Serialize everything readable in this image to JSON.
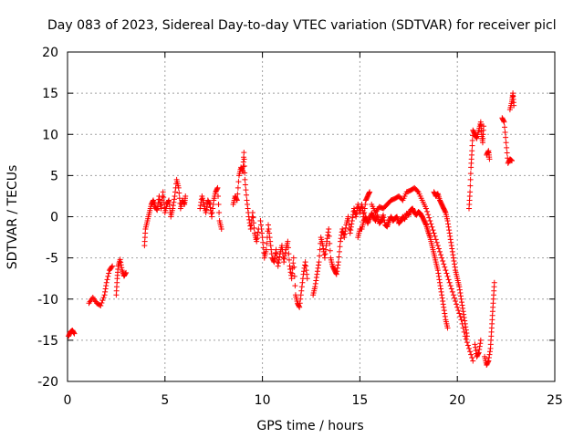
{
  "chart_data": {
    "type": "scatter",
    "title": "Day 083 of 2023, Sidereal Day-to-day VTEC variation (SDTVAR) for receiver picl",
    "xlabel": "GPS time / hours",
    "ylabel": "SDTVAR / TECUs",
    "xlim": [
      0,
      25
    ],
    "ylim": [
      -20,
      20
    ],
    "x_ticks": [
      0,
      5,
      10,
      15,
      20,
      25
    ],
    "y_ticks": [
      -20,
      -15,
      -10,
      -5,
      0,
      5,
      10,
      15,
      20
    ],
    "x_tick_labels": [
      "0",
      "5",
      "10",
      "15",
      "20",
      "25"
    ],
    "y_tick_labels": [
      "-20",
      "-15",
      "-10",
      "-5",
      "0",
      "5",
      "10",
      "15",
      "20"
    ],
    "grid": true,
    "marker": "+",
    "marker_color": "#ff0000",
    "series": [
      {
        "name": "SDTVAR",
        "segments": [
          [
            [
              0.05,
              -14.5
            ],
            [
              0.15,
              -14.0
            ],
            [
              0.25,
              -13.8
            ],
            [
              0.35,
              -14.2
            ]
          ],
          [
            [
              1.1,
              -10.5
            ],
            [
              1.3,
              -9.8
            ],
            [
              1.5,
              -10.5
            ],
            [
              1.7,
              -10.8
            ],
            [
              1.9,
              -9.5
            ],
            [
              2.0,
              -8.0
            ],
            [
              2.15,
              -6.5
            ],
            [
              2.3,
              -6.0
            ]
          ],
          [
            [
              2.5,
              -9.5
            ],
            [
              2.55,
              -7.5
            ],
            [
              2.6,
              -6.0
            ],
            [
              2.7,
              -5.2
            ],
            [
              2.8,
              -6.5
            ],
            [
              2.9,
              -7.2
            ],
            [
              3.0,
              -6.8
            ]
          ],
          [
            [
              3.95,
              -3.5
            ],
            [
              4.0,
              -1.5
            ],
            [
              4.1,
              -0.5
            ],
            [
              4.2,
              0.5
            ],
            [
              4.3,
              1.5
            ],
            [
              4.4,
              2.0
            ],
            [
              4.5,
              1.2
            ],
            [
              4.6,
              0.8
            ],
            [
              4.7,
              2.5
            ],
            [
              4.8,
              1.0
            ],
            [
              4.9,
              3.0
            ],
            [
              5.0,
              0.5
            ],
            [
              5.1,
              1.5
            ],
            [
              5.2,
              2.0
            ],
            [
              5.3,
              0.0
            ],
            [
              5.4,
              1.0
            ],
            [
              5.5,
              2.5
            ],
            [
              5.6,
              4.5
            ],
            [
              5.7,
              3.5
            ],
            [
              5.8,
              1.0
            ],
            [
              5.9,
              2.0
            ],
            [
              6.0,
              1.5
            ],
            [
              6.05,
              2.5
            ]
          ],
          [
            [
              6.8,
              1.0
            ],
            [
              6.9,
              2.5
            ],
            [
              7.0,
              1.5
            ],
            [
              7.1,
              0.5
            ],
            [
              7.2,
              2.0
            ],
            [
              7.3,
              1.5
            ],
            [
              7.4,
              0.0
            ],
            [
              7.5,
              2.0
            ],
            [
              7.6,
              3.0
            ],
            [
              7.7,
              3.5
            ],
            [
              7.8,
              -0.5
            ],
            [
              7.9,
              -1.5
            ]
          ],
          [
            [
              8.5,
              1.5
            ],
            [
              8.6,
              2.5
            ],
            [
              8.7,
              2.0
            ],
            [
              8.8,
              5.0
            ],
            [
              8.9,
              6.0
            ],
            [
              9.0,
              5.5
            ],
            [
              9.05,
              7.8
            ],
            [
              9.1,
              4.5
            ],
            [
              9.2,
              2.0
            ],
            [
              9.3,
              0.0
            ],
            [
              9.4,
              -1.5
            ],
            [
              9.5,
              0.5
            ],
            [
              9.6,
              -2.0
            ],
            [
              9.7,
              -3.0
            ],
            [
              9.8,
              -1.5
            ]
          ],
          [
            [
              9.9,
              -0.5
            ],
            [
              10.0,
              -2.5
            ],
            [
              10.1,
              -5.0
            ],
            [
              10.2,
              -4.0
            ],
            [
              10.3,
              -1.0
            ],
            [
              10.4,
              -3.0
            ],
            [
              10.5,
              -5.0
            ],
            [
              10.6,
              -5.5
            ],
            [
              10.7,
              -4.0
            ],
            [
              10.8,
              -6.0
            ],
            [
              10.9,
              -4.5
            ],
            [
              11.0,
              -3.5
            ],
            [
              11.1,
              -5.5
            ],
            [
              11.2,
              -4.0
            ],
            [
              11.3,
              -3.0
            ],
            [
              11.4,
              -6.0
            ],
            [
              11.5,
              -7.5
            ],
            [
              11.6,
              -5.0
            ],
            [
              11.7,
              -9.5
            ],
            [
              11.8,
              -10.5
            ],
            [
              11.9,
              -11.0
            ],
            [
              12.0,
              -9.0
            ],
            [
              12.1,
              -7.0
            ],
            [
              12.2,
              -5.5
            ],
            [
              12.3,
              -7.5
            ]
          ],
          [
            [
              12.6,
              -9.5
            ],
            [
              12.7,
              -8.5
            ],
            [
              12.8,
              -7.0
            ],
            [
              12.9,
              -5.5
            ],
            [
              13.0,
              -2.5
            ],
            [
              13.1,
              -3.5
            ],
            [
              13.2,
              -5.0
            ],
            [
              13.3,
              -3.0
            ],
            [
              13.4,
              -1.5
            ],
            [
              13.5,
              -5.0
            ],
            [
              13.6,
              -6.0
            ],
            [
              13.7,
              -6.5
            ],
            [
              13.8,
              -7.0
            ],
            [
              13.9,
              -5.5
            ],
            [
              14.0,
              -3.0
            ],
            [
              14.1,
              -1.5
            ],
            [
              14.2,
              -2.5
            ],
            [
              14.3,
              -1.0
            ],
            [
              14.4,
              0.0
            ],
            [
              14.5,
              -2.0
            ],
            [
              14.6,
              -0.5
            ],
            [
              14.7,
              1.0
            ],
            [
              14.8,
              0.0
            ],
            [
              14.9,
              1.5
            ],
            [
              15.0,
              0.5
            ],
            [
              15.1,
              1.5
            ],
            [
              15.2,
              0.0
            ],
            [
              15.3,
              2.0
            ],
            [
              15.4,
              2.5
            ],
            [
              15.5,
              3.0
            ]
          ],
          [
            [
              14.9,
              -2.5
            ],
            [
              15.0,
              -1.5
            ],
            [
              15.1,
              -1.5
            ],
            [
              15.2,
              -0.5
            ],
            [
              15.3,
              0.0
            ],
            [
              15.4,
              -0.8
            ],
            [
              15.5,
              -0.2
            ],
            [
              15.6,
              0.4
            ],
            [
              15.7,
              0.0
            ],
            [
              15.8,
              -0.5
            ],
            [
              15.9,
              0.2
            ],
            [
              16.0,
              -0.8
            ],
            [
              16.1,
              -0.5
            ],
            [
              16.2,
              0.2
            ],
            [
              16.3,
              -1.0
            ],
            [
              16.4,
              -1.2
            ],
            [
              16.5,
              -0.5
            ],
            [
              16.6,
              0.0
            ],
            [
              16.7,
              -0.5
            ],
            [
              16.8,
              -0.2
            ],
            [
              16.9,
              0.0
            ],
            [
              17.0,
              -0.8
            ],
            [
              17.1,
              -0.5
            ],
            [
              17.2,
              0.0
            ],
            [
              17.3,
              -0.3
            ],
            [
              17.4,
              0.4
            ],
            [
              17.5,
              0.2
            ],
            [
              17.6,
              0.8
            ],
            [
              17.7,
              1.0
            ],
            [
              17.8,
              0.5
            ],
            [
              17.9,
              0.2
            ],
            [
              18.0,
              0.6
            ],
            [
              18.1,
              0.4
            ],
            [
              18.2,
              0.0
            ],
            [
              18.3,
              -0.5
            ],
            [
              18.4,
              -1.0
            ],
            [
              18.5,
              -1.8
            ],
            [
              18.6,
              -2.5
            ],
            [
              18.7,
              -3.5
            ],
            [
              18.8,
              -4.5
            ],
            [
              18.9,
              -5.5
            ],
            [
              19.0,
              -6.5
            ],
            [
              19.1,
              -8.0
            ],
            [
              19.2,
              -9.5
            ],
            [
              19.3,
              -11.0
            ],
            [
              19.4,
              -12.5
            ],
            [
              19.5,
              -13.5
            ]
          ],
          [
            [
              15.6,
              1.5
            ],
            [
              15.8,
              0.5
            ],
            [
              16.0,
              1.2
            ],
            [
              16.2,
              1.0
            ],
            [
              16.4,
              1.5
            ],
            [
              16.6,
              2.0
            ],
            [
              16.8,
              2.2
            ],
            [
              17.0,
              2.5
            ],
            [
              17.2,
              2.0
            ],
            [
              17.4,
              3.0
            ],
            [
              17.6,
              3.2
            ],
            [
              17.8,
              3.5
            ],
            [
              18.0,
              3.0
            ],
            [
              18.2,
              2.0
            ],
            [
              18.4,
              1.0
            ],
            [
              18.6,
              -0.5
            ],
            [
              18.8,
              -2.0
            ],
            [
              19.0,
              -3.5
            ],
            [
              19.2,
              -5.0
            ],
            [
              19.4,
              -6.5
            ],
            [
              19.6,
              -8.0
            ],
            [
              19.8,
              -9.5
            ],
            [
              20.0,
              -11.0
            ],
            [
              20.2,
              -12.5
            ],
            [
              20.4,
              -14.5
            ],
            [
              20.6,
              -16.0
            ],
            [
              20.8,
              -17.5
            ]
          ],
          [
            [
              18.8,
              3.0
            ],
            [
              18.9,
              2.5
            ],
            [
              19.0,
              2.8
            ],
            [
              19.1,
              2.0
            ],
            [
              19.2,
              1.5
            ],
            [
              19.3,
              1.0
            ],
            [
              19.4,
              0.5
            ],
            [
              19.5,
              -0.5
            ],
            [
              19.6,
              -2.0
            ],
            [
              19.7,
              -3.5
            ],
            [
              19.8,
              -5.0
            ],
            [
              19.9,
              -6.5
            ],
            [
              20.0,
              -7.5
            ],
            [
              20.1,
              -8.5
            ],
            [
              20.2,
              -10.0
            ],
            [
              20.3,
              -11.5
            ],
            [
              20.4,
              -13.0
            ],
            [
              20.5,
              -14.5
            ]
          ],
          [
            [
              20.6,
              1.0
            ],
            [
              20.65,
              3.0
            ],
            [
              20.7,
              6.0
            ],
            [
              20.75,
              8.0
            ],
            [
              20.8,
              10.5
            ],
            [
              20.9,
              10.0
            ],
            [
              21.0,
              9.5
            ],
            [
              21.1,
              10.5
            ],
            [
              21.2,
              11.5
            ],
            [
              21.25,
              10.0
            ],
            [
              21.3,
              9.0
            ],
            [
              21.35,
              11.0
            ]
          ],
          [
            [
              20.9,
              -15.5
            ],
            [
              21.0,
              -17.0
            ],
            [
              21.1,
              -16.5
            ],
            [
              21.2,
              -15.0
            ]
          ],
          [
            [
              21.5,
              7.5
            ],
            [
              21.6,
              8.0
            ],
            [
              21.65,
              7.0
            ]
          ],
          [
            [
              21.4,
              -17.0
            ],
            [
              21.5,
              -18.0
            ],
            [
              21.6,
              -17.5
            ],
            [
              21.7,
              -16.0
            ],
            [
              21.75,
              -14.0
            ],
            [
              21.8,
              -12.0
            ],
            [
              21.85,
              -10.0
            ],
            [
              21.9,
              -8.0
            ]
          ],
          [
            [
              22.3,
              12.0
            ],
            [
              22.4,
              11.5
            ],
            [
              22.5,
              9.0
            ],
            [
              22.6,
              6.5
            ],
            [
              22.7,
              7.0
            ],
            [
              22.8,
              6.8
            ]
          ],
          [
            [
              22.7,
              13.0
            ],
            [
              22.8,
              14.0
            ],
            [
              22.85,
              15.0
            ],
            [
              22.9,
              13.5
            ]
          ]
        ]
      }
    ]
  }
}
